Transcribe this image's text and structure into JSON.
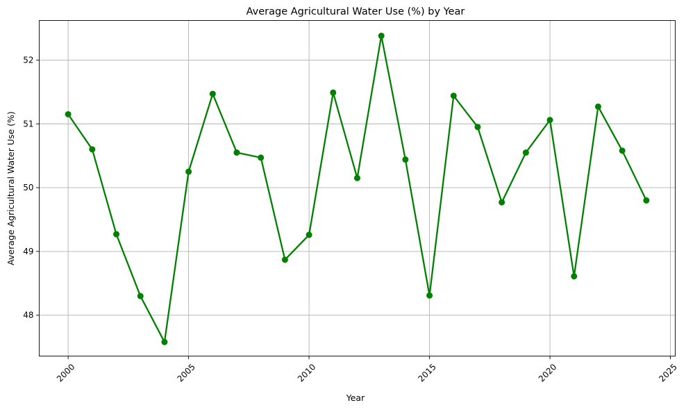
{
  "chart_data": {
    "type": "line",
    "title": "Average Agricultural Water Use (%) by Year",
    "xlabel": "Year",
    "ylabel": "Average Agricultural Water Use (%)",
    "x": [
      2000,
      2001,
      2002,
      2003,
      2004,
      2005,
      2006,
      2007,
      2008,
      2009,
      2010,
      2011,
      2012,
      2013,
      2014,
      2015,
      2016,
      2017,
      2018,
      2019,
      2020,
      2021,
      2022,
      2023,
      2024
    ],
    "series": [
      {
        "values": [
          51.15,
          50.6,
          49.27,
          48.3,
          47.58,
          50.25,
          51.47,
          50.55,
          50.47,
          48.87,
          49.26,
          51.49,
          50.15,
          52.38,
          50.44,
          48.31,
          51.44,
          50.95,
          49.77,
          50.55,
          51.06,
          48.61,
          51.27,
          50.58,
          49.8
        ],
        "color": "#008000",
        "marker": "circle"
      }
    ],
    "xticks": [
      2000,
      2005,
      2010,
      2015,
      2020,
      2025
    ],
    "yticks": [
      48,
      49,
      50,
      51,
      52
    ],
    "xlim": [
      1998.8,
      2025.2
    ],
    "ylim": [
      47.36,
      52.62
    ],
    "xtick_rotation": 45,
    "grid": true,
    "grid_color": "#b0b0b0",
    "line_color": "#008000"
  }
}
